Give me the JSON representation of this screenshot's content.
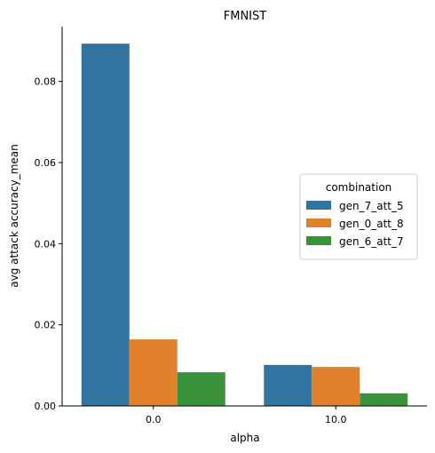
{
  "chart_data": {
    "type": "bar",
    "title": "FMNIST",
    "xlabel": "alpha",
    "ylabel": "avg attack accuracy_mean",
    "categories": [
      "0.0",
      "10.0"
    ],
    "series": [
      {
        "name": "gen_7_att_5",
        "color": "#3274a1",
        "values": [
          0.0893,
          0.0101
        ]
      },
      {
        "name": "gen_0_att_8",
        "color": "#e1812c",
        "values": [
          0.0164,
          0.0096
        ]
      },
      {
        "name": "gen_6_att_7",
        "color": "#3a923a",
        "values": [
          0.0083,
          0.0031
        ]
      }
    ],
    "ylim": [
      0,
      0.0935
    ],
    "yticks": [
      0.0,
      0.02,
      0.04,
      0.06,
      0.08
    ],
    "ytick_labels": [
      "0.00",
      "0.02",
      "0.04",
      "0.06",
      "0.08"
    ],
    "legend": {
      "title": "combination",
      "placement": "center-right"
    },
    "grid": false
  }
}
